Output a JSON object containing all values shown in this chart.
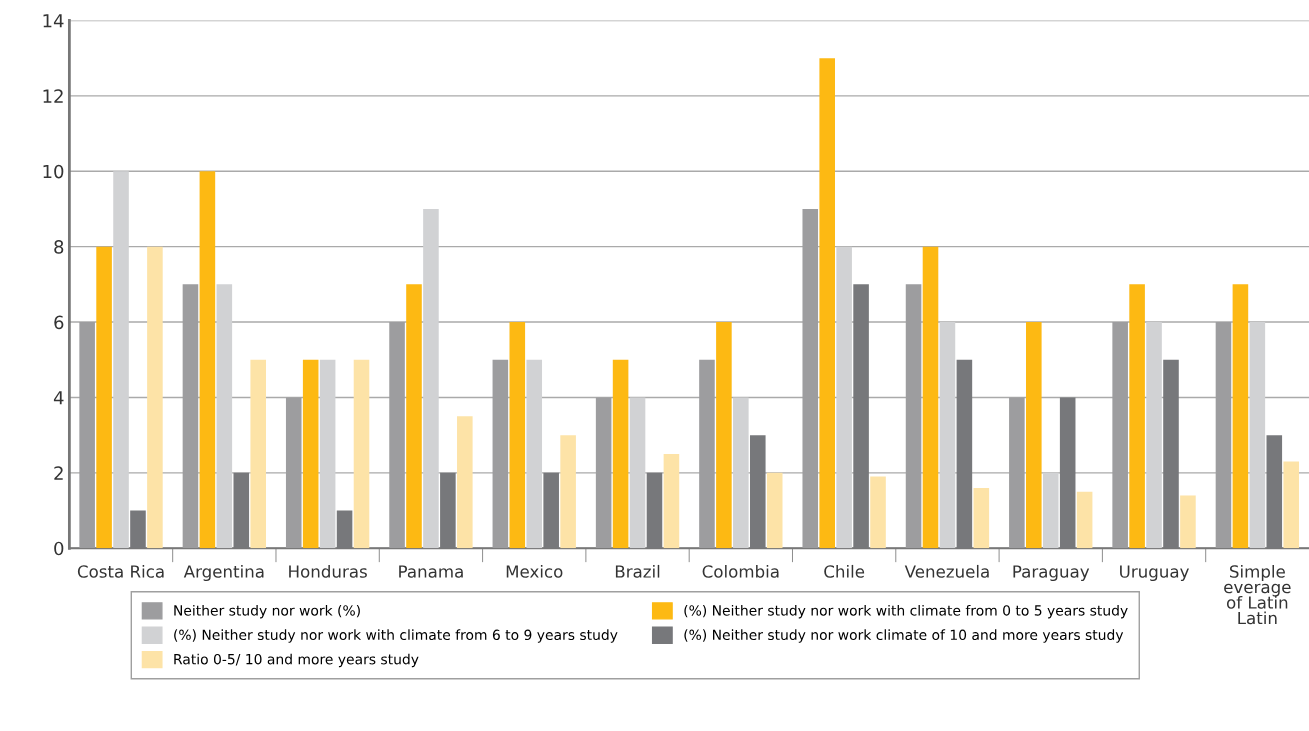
{
  "chart_data": {
    "type": "bar",
    "categories": [
      "Costa Rica",
      "Argentina",
      "Honduras",
      "Panama",
      "Mexico",
      "Brazil",
      "Colombia",
      "Chile",
      "Venezuela",
      "Paraguay",
      "Uruguay",
      "Simple\neverage\nof Latin\nLatin"
    ],
    "series": [
      {
        "name": "Neither study nor work (%)",
        "color": "#9d9d9f",
        "values": [
          6,
          7,
          4,
          6,
          5,
          4,
          5,
          9,
          7,
          4,
          6,
          6
        ]
      },
      {
        "name": "(%) Neither study nor work with climate from 0 to 5 years study",
        "color": "#fdb913",
        "values": [
          8,
          10,
          5,
          7,
          6,
          5,
          6,
          13,
          8,
          6,
          7,
          7
        ]
      },
      {
        "name": "(%) Neither study nor work with climate from 6 to 9 years study",
        "color": "#d1d2d4",
        "values": [
          10,
          7,
          5,
          9,
          5,
          4,
          4,
          8,
          6,
          2,
          6,
          6
        ]
      },
      {
        "name": "(%) Neither study nor work climate of 10 and more years study",
        "color": "#77787b",
        "values": [
          1,
          2,
          1,
          2,
          2,
          2,
          3,
          7,
          5,
          4,
          5,
          3
        ]
      },
      {
        "name": "Ratio 0-5/ 10 and more years study",
        "color": "#fde3a7",
        "values": [
          8,
          5,
          5,
          3.5,
          3,
          2.5,
          2,
          1.9,
          1.6,
          1.5,
          1.4,
          2.3
        ]
      }
    ],
    "ylim": [
      0,
      14
    ],
    "yticks": [
      0,
      2,
      4,
      6,
      8,
      10,
      12,
      14
    ],
    "grid": "y",
    "legend": "bottom"
  }
}
